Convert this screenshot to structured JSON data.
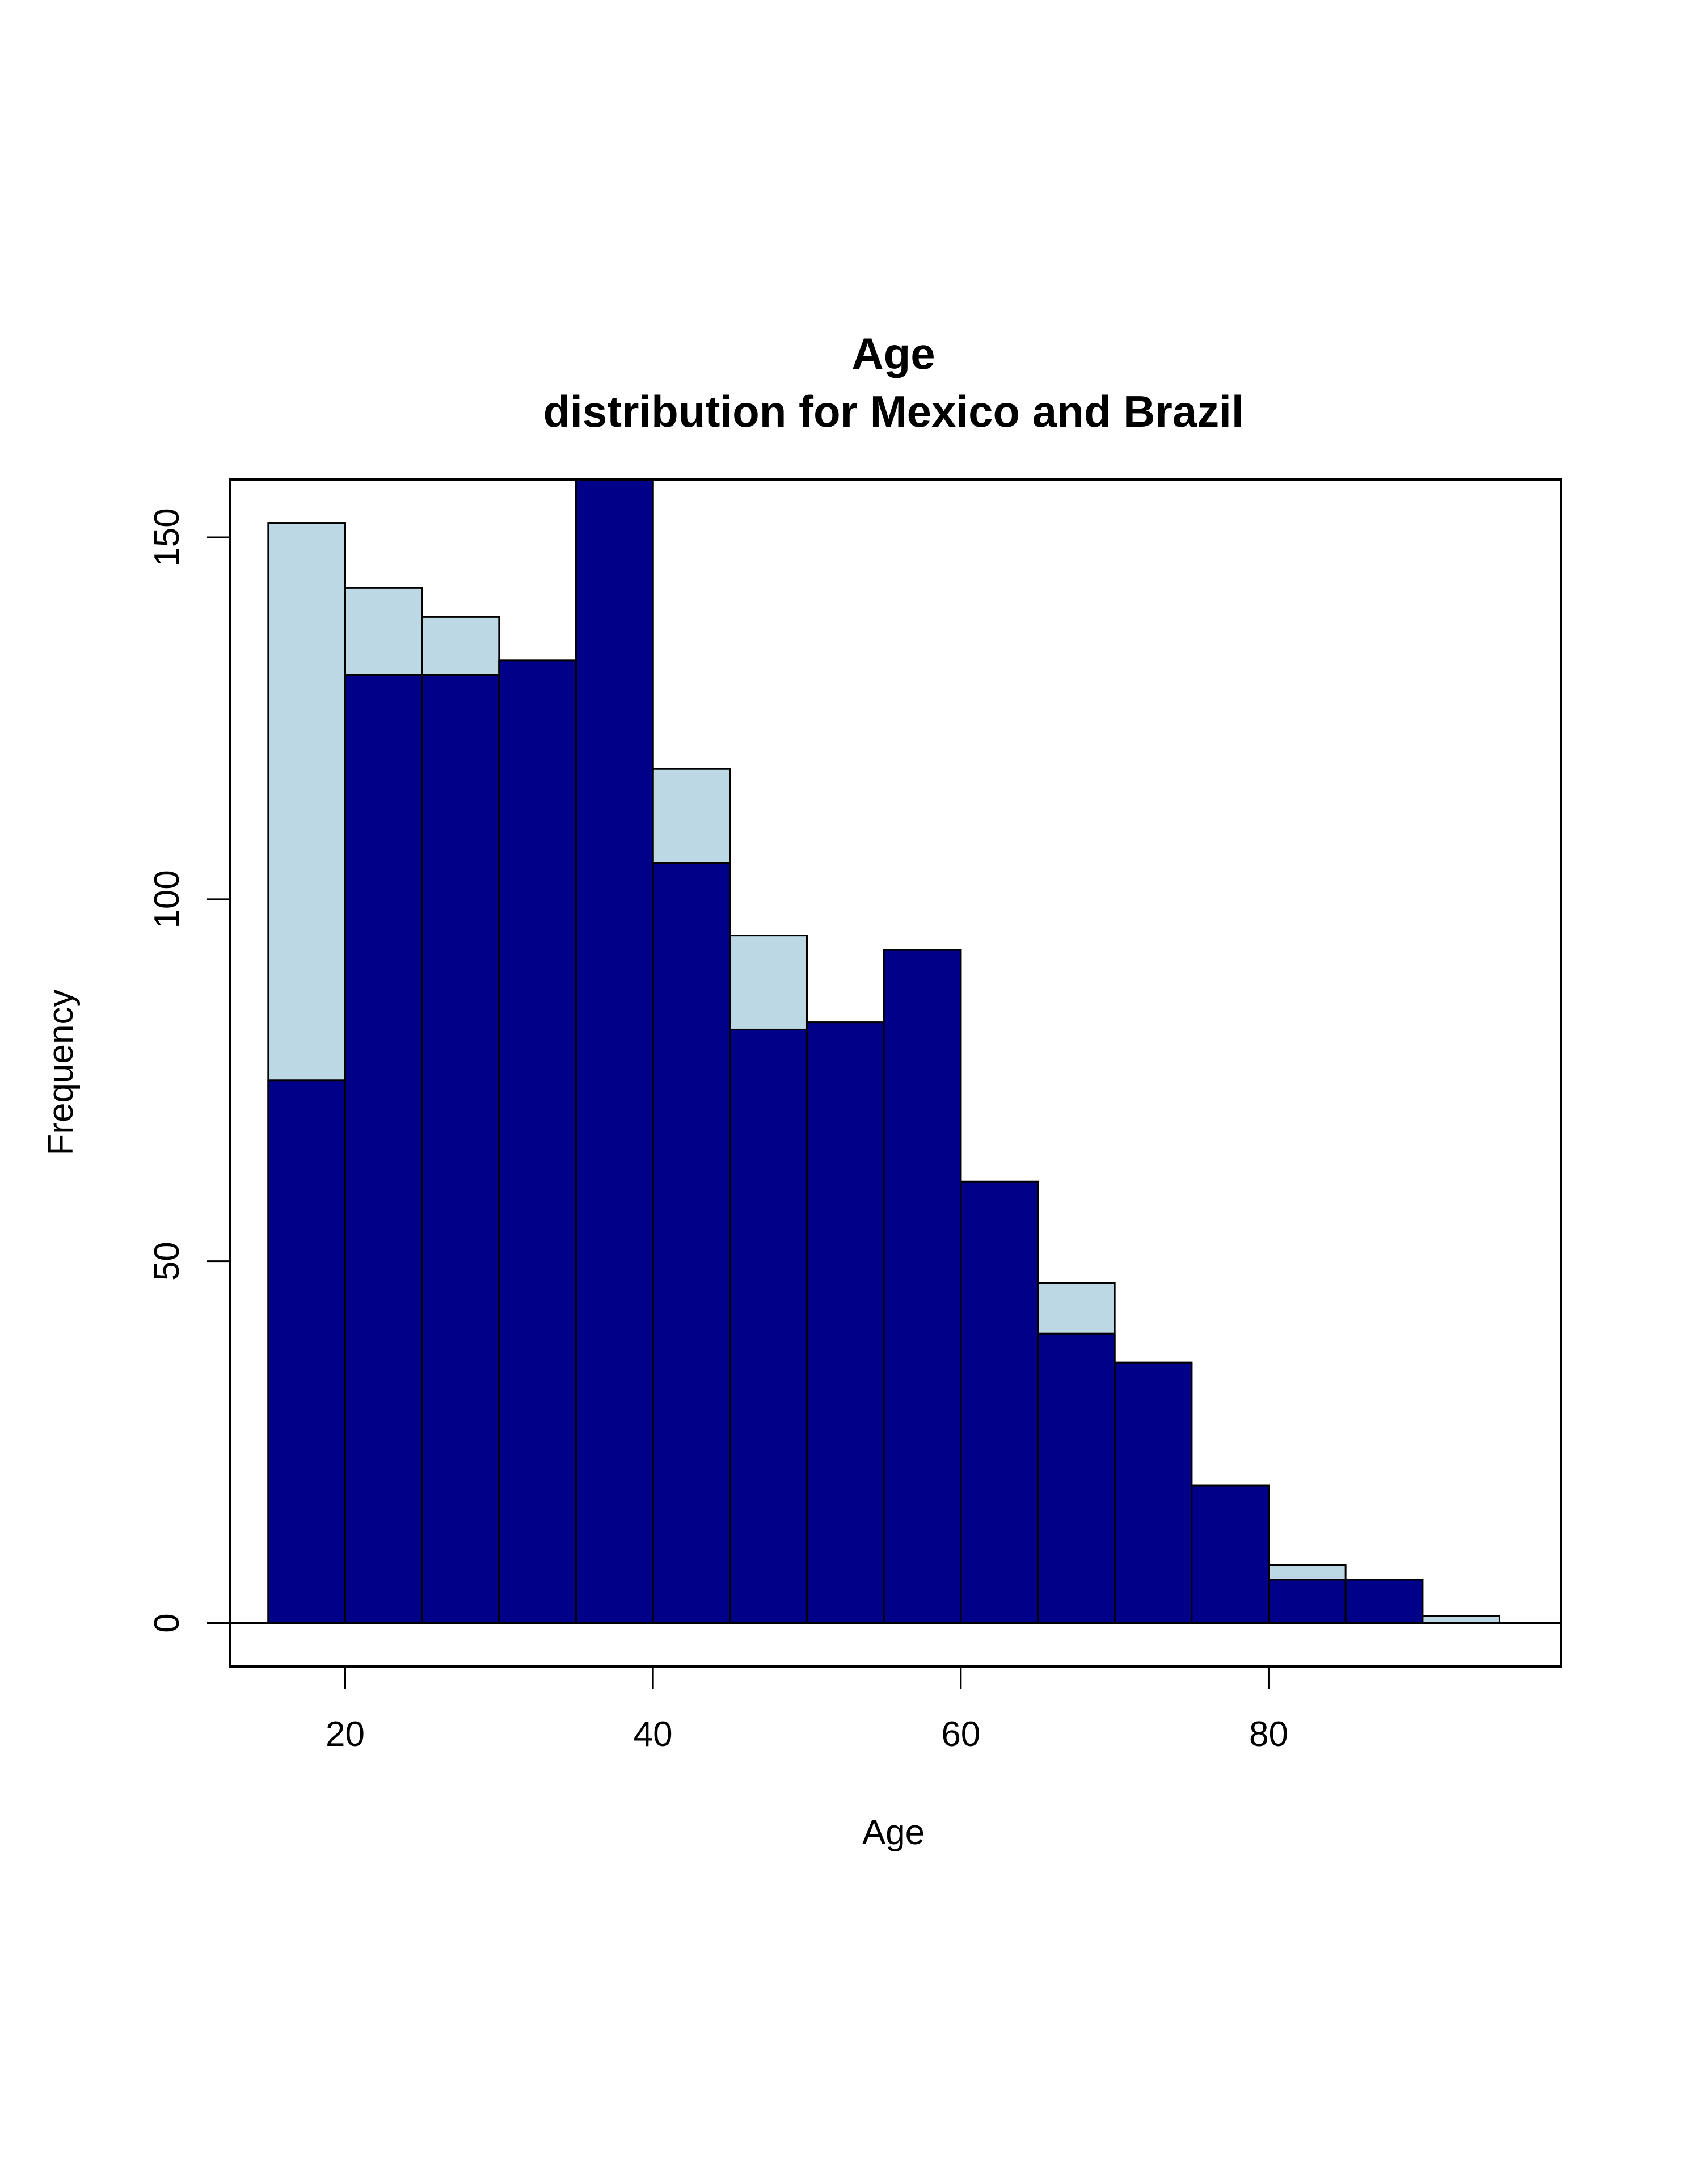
{
  "chart_data": {
    "type": "bar",
    "chart_kind": "histogram",
    "title": "Age",
    "subtitle": "distribution for Mexico and Brazil",
    "xlabel": "Age",
    "ylabel": "Frequency",
    "xlim": [
      12.5,
      99
    ],
    "ylim": [
      -6,
      158
    ],
    "x_ticks": [
      20,
      40,
      60,
      80
    ],
    "y_ticks": [
      0,
      50,
      100,
      150
    ],
    "bin_edges": [
      15,
      20,
      25,
      30,
      35,
      40,
      45,
      50,
      55,
      60,
      65,
      70,
      75,
      80,
      85,
      90,
      95
    ],
    "series": [
      {
        "color": "#BCD8E5",
        "values": [
          152,
          143,
          139,
          133,
          160,
          118,
          95,
          83,
          93,
          61,
          47,
          36,
          19,
          8,
          6,
          1
        ]
      },
      {
        "color": "#000088",
        "values": [
          75,
          131,
          131,
          133,
          160,
          105,
          82,
          83,
          93,
          61,
          40,
          36,
          19,
          6,
          6,
          0
        ]
      }
    ],
    "grid": false,
    "legend": "none"
  }
}
